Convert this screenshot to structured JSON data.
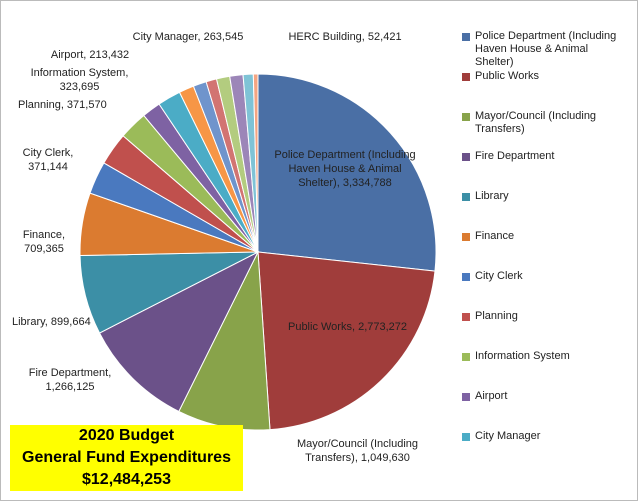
{
  "chart_data": {
    "type": "pie",
    "title": "2020 Budget",
    "subtitle": "General Fund Expenditures",
    "annotation": "$12,484,253",
    "categories": [
      "Police Department (Including Haven House & Animal Shelter)",
      "Public Works",
      "Mayor/Council (Including Transfers)",
      "Fire Department",
      "Library",
      "Finance",
      "City Clerk",
      "Planning",
      "Information System",
      "Airport",
      "City Manager",
      null,
      null,
      null,
      null,
      null,
      null,
      "HERC Building"
    ],
    "values": [
      3334788,
      2773272,
      1049630,
      1266125,
      899664,
      709365,
      371144,
      371570,
      323695,
      213432,
      263545,
      170000,
      150000,
      120000,
      150000,
      150000,
      115000,
      52421
    ],
    "value_labels": [
      "Police Department (Including Haven House & Animal Shelter), 3,334,788",
      "Public Works, 2,773,272",
      "Mayor/Council (Including Transfers), 1,049,630",
      "Fire Department, 1,266,125",
      "Library, 899,664",
      "Finance, 709,365",
      "City Clerk, 371,144",
      "Planning, 371,570",
      "Information System, 323,695",
      "Airport, 213,432",
      "City Manager, 263,545",
      null,
      null,
      null,
      null,
      null,
      null,
      "HERC Building, 52,421"
    ],
    "colors": [
      "#4a6fa5",
      "#a03d3b",
      "#88a34a",
      "#6b5189",
      "#3c8fa6",
      "#db7b30",
      "#4a79bf",
      "#c0504d",
      "#9bbb59",
      "#7e62a3",
      "#4bacc6",
      "#f79646",
      "#6f94cc",
      "#d27472",
      "#b3cc7f",
      "#9c86b8",
      "#7fc3d6",
      "#f4a582"
    ],
    "legend": "right"
  }
}
